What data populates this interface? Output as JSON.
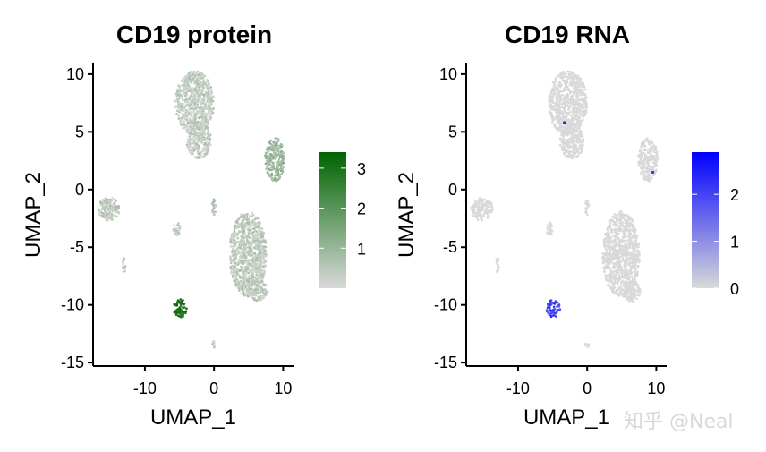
{
  "chart_data": [
    {
      "type": "scatter",
      "title": "CD19 protein",
      "xlabel": "UMAP_1",
      "ylabel": "UMAP_2",
      "xlim": [
        -17.5,
        11.5
      ],
      "ylim": [
        -15.3,
        11
      ],
      "x_ticks": [
        -10,
        0,
        10
      ],
      "x_tick_labels": [
        "-10",
        "0",
        "10"
      ],
      "y_ticks": [
        10,
        5,
        0,
        -5,
        -10,
        -15
      ],
      "y_tick_labels": [
        "10",
        "5",
        "0",
        "-5",
        "-10",
        "-15"
      ],
      "legend": {
        "range": [
          0,
          3.4
        ],
        "low_color": "#d9d9d9",
        "high_color": "#006400",
        "ticks": [
          3,
          2,
          1
        ],
        "tick_labels": [
          "3",
          "2",
          "1"
        ],
        "placement": "right"
      },
      "clusters": [
        {
          "name": "top",
          "cx": -2.8,
          "cy": 7.5,
          "rx": 2.8,
          "ry": 2.8,
          "value": 0.35
        },
        {
          "name": "top-neck",
          "cx": -2.2,
          "cy": 4.3,
          "rx": 1.8,
          "ry": 1.6,
          "value": 0.35
        },
        {
          "name": "right",
          "cx": 8.8,
          "cy": 2.6,
          "rx": 1.4,
          "ry": 1.9,
          "value": 0.9
        },
        {
          "name": "left",
          "cx": -15.2,
          "cy": -1.7,
          "rx": 1.6,
          "ry": 1.0,
          "value": 0.4
        },
        {
          "name": "bottom",
          "cx": 4.9,
          "cy": -5.6,
          "rx": 2.7,
          "ry": 3.7,
          "value": 0.4
        },
        {
          "name": "bottom-tail",
          "cx": 6.5,
          "cy": -8.8,
          "rx": 1.4,
          "ry": 0.9,
          "value": 0.4
        },
        {
          "name": "small-mid",
          "cx": -5.4,
          "cy": -3.4,
          "rx": 0.5,
          "ry": 0.6,
          "value": 0.4
        },
        {
          "name": "b-cells",
          "cx": -4.9,
          "cy": -10.3,
          "rx": 1.0,
          "ry": 0.8,
          "value": 3.0
        },
        {
          "name": "speck-1",
          "cx": -13.0,
          "cy": -6.5,
          "rx": 0.2,
          "ry": 0.8,
          "value": 0.4
        },
        {
          "name": "speck-2",
          "cx": 0.0,
          "cy": -13.4,
          "rx": 0.3,
          "ry": 0.3,
          "value": 0.4
        },
        {
          "name": "speck-3",
          "cx": 0.0,
          "cy": -1.5,
          "rx": 0.3,
          "ry": 0.7,
          "value": 0.5
        }
      ]
    },
    {
      "type": "scatter",
      "title": "CD19 RNA",
      "xlabel": "UMAP_1",
      "ylabel": "UMAP_2",
      "xlim": [
        -17.5,
        11.5
      ],
      "ylim": [
        -15.3,
        11
      ],
      "x_ticks": [
        -10,
        0,
        10
      ],
      "x_tick_labels": [
        "-10",
        "0",
        "10"
      ],
      "y_ticks": [
        10,
        5,
        0,
        -5,
        -10,
        -15
      ],
      "y_tick_labels": [
        "10",
        "5",
        "0",
        "-5",
        "-10",
        "-15"
      ],
      "legend": {
        "range": [
          0,
          2.9
        ],
        "low_color": "#d9d9d9",
        "high_color": "#0000ff",
        "ticks": [
          2,
          1,
          0
        ],
        "tick_labels": [
          "2",
          "1",
          "0"
        ],
        "placement": "right"
      },
      "clusters": [
        {
          "name": "top",
          "cx": -2.8,
          "cy": 7.5,
          "rx": 2.8,
          "ry": 2.8,
          "value": 0.0
        },
        {
          "name": "top-neck",
          "cx": -2.2,
          "cy": 4.3,
          "rx": 1.8,
          "ry": 1.6,
          "value": 0.0
        },
        {
          "name": "right",
          "cx": 8.8,
          "cy": 2.6,
          "rx": 1.4,
          "ry": 1.9,
          "value": 0.0
        },
        {
          "name": "left",
          "cx": -15.2,
          "cy": -1.7,
          "rx": 1.6,
          "ry": 1.0,
          "value": 0.0
        },
        {
          "name": "bottom",
          "cx": 4.9,
          "cy": -5.6,
          "rx": 2.7,
          "ry": 3.7,
          "value": 0.0
        },
        {
          "name": "bottom-tail",
          "cx": 6.5,
          "cy": -8.8,
          "rx": 1.4,
          "ry": 0.9,
          "value": 0.0
        },
        {
          "name": "small-mid",
          "cx": -5.4,
          "cy": -3.4,
          "rx": 0.5,
          "ry": 0.6,
          "value": 0.0
        },
        {
          "name": "b-cells",
          "cx": -4.9,
          "cy": -10.3,
          "rx": 1.0,
          "ry": 0.8,
          "value": 2.0
        },
        {
          "name": "speck-1",
          "cx": -13.0,
          "cy": -6.5,
          "rx": 0.2,
          "ry": 0.8,
          "value": 0.0
        },
        {
          "name": "speck-2",
          "cx": 0.0,
          "cy": -13.4,
          "rx": 0.3,
          "ry": 0.3,
          "value": 0.0
        },
        {
          "name": "speck-3",
          "cx": 0.0,
          "cy": -1.5,
          "rx": 0.3,
          "ry": 0.7,
          "value": 0.0
        }
      ],
      "highlight_points": [
        {
          "x": -3.3,
          "y": 5.8,
          "value": 2.5
        },
        {
          "x": 9.5,
          "y": 1.5,
          "value": 2.2
        }
      ]
    }
  ],
  "watermark": "知乎 @Neal"
}
